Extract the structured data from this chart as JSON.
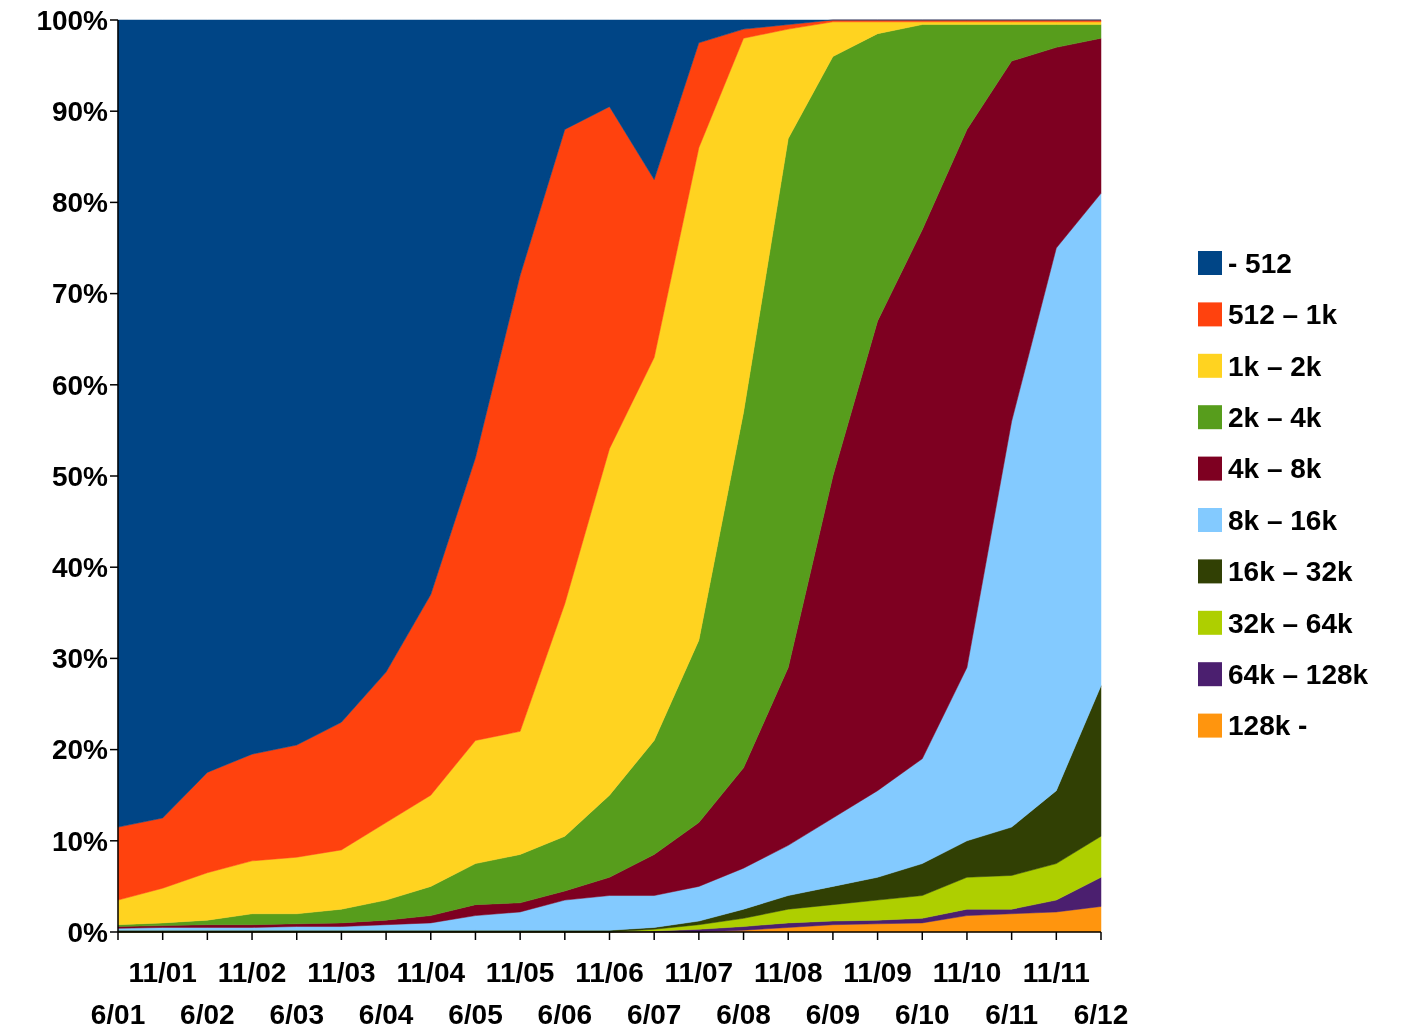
{
  "chart_data": {
    "type": "area",
    "stacked": true,
    "legend": "right",
    "grid": false,
    "categories": [
      "6/01",
      "11/01",
      "6/02",
      "11/02",
      "6/03",
      "11/03",
      "6/04",
      "11/04",
      "6/05",
      "11/05",
      "6/06",
      "11/06",
      "6/07",
      "11/07",
      "6/08",
      "11/08",
      "6/09",
      "11/09",
      "6/10",
      "11/10",
      "6/11",
      "11/11",
      "6/12"
    ],
    "ylim": [
      0,
      100
    ],
    "yticks": [
      {
        "value": 0,
        "label": "0%"
      },
      {
        "value": 10,
        "label": "10%"
      },
      {
        "value": 20,
        "label": "20%"
      },
      {
        "value": 30,
        "label": "30%"
      },
      {
        "value": 40,
        "label": "40%"
      },
      {
        "value": 50,
        "label": "50%"
      },
      {
        "value": 60,
        "label": "60%"
      },
      {
        "value": 70,
        "label": "70%"
      },
      {
        "value": 80,
        "label": "80%"
      },
      {
        "value": 90,
        "label": "90%"
      },
      {
        "value": 100,
        "label": "100%"
      }
    ],
    "series": [
      {
        "name": "128k -",
        "color": "#ff950e",
        "values": [
          0,
          0,
          0,
          0,
          0,
          0,
          0,
          0,
          0,
          0,
          0,
          0,
          0,
          0,
          0.2,
          0.5,
          0.8,
          0.9,
          1,
          1.8,
          2,
          2.2,
          2.8
        ]
      },
      {
        "name": "64k – 128k",
        "color": "#4b1f6f",
        "values": [
          0,
          0,
          0,
          0,
          0,
          0,
          0,
          0,
          0,
          0,
          0,
          0,
          0.1,
          0.3,
          0.4,
          0.5,
          0.4,
          0.4,
          0.5,
          0.7,
          0.5,
          1.3,
          3.2
        ]
      },
      {
        "name": "32k – 64k",
        "color": "#aecf00",
        "values": [
          0,
          0,
          0,
          0,
          0,
          0,
          0,
          0,
          0,
          0,
          0,
          0,
          0.2,
          0.5,
          0.9,
          1.5,
          1.8,
          2.2,
          2.5,
          3.5,
          3.7,
          4,
          4.5
        ]
      },
      {
        "name": "16k – 32k",
        "color": "#314004",
        "values": [
          0.2,
          0.2,
          0.2,
          0.2,
          0.2,
          0.2,
          0.2,
          0.2,
          0.2,
          0.2,
          0.2,
          0.2,
          0.2,
          0.4,
          1,
          1.5,
          2,
          2.5,
          3.5,
          4,
          5.3,
          8,
          16.5
        ]
      },
      {
        "name": "8k – 16k",
        "color": "#83caff",
        "values": [
          0.2,
          0.3,
          0.3,
          0.3,
          0.4,
          0.4,
          0.6,
          0.8,
          1.6,
          2,
          3.3,
          3.8,
          3.5,
          3.8,
          4.5,
          5.5,
          7.5,
          9.5,
          11.5,
          19,
          44.5,
          59.5,
          54
        ]
      },
      {
        "name": "4k – 8k",
        "color": "#7e0021",
        "values": [
          0.2,
          0.2,
          0.3,
          0.3,
          0.3,
          0.4,
          0.5,
          0.8,
          1.2,
          1,
          1,
          2,
          4.5,
          7,
          11,
          19.5,
          37.5,
          51.5,
          58,
          59,
          39.5,
          22,
          17
        ]
      },
      {
        "name": "2k – 4k",
        "color": "#579d1c",
        "values": [
          0.2,
          0.3,
          0.5,
          1.2,
          1.1,
          1.5,
          2.2,
          3.2,
          4.5,
          5.3,
          6,
          9,
          12.5,
          20,
          39,
          58,
          46,
          31.5,
          22.5,
          11.5,
          4,
          2.5,
          1.5
        ]
      },
      {
        "name": "1k – 2k",
        "color": "#ffd320",
        "values": [
          2.7,
          3.8,
          5.2,
          5.8,
          6.2,
          6.5,
          8.5,
          10,
          13.5,
          13.5,
          25.5,
          38,
          42,
          54,
          41,
          12,
          3.8,
          1.3,
          0.3,
          0.3,
          0.3,
          0.3,
          0.3
        ]
      },
      {
        "name": "512 – 1k",
        "color": "#ff420e",
        "values": [
          8,
          7.7,
          11,
          11.7,
          12.3,
          14,
          16.5,
          22,
          31,
          50,
          52,
          37.5,
          19.5,
          11.5,
          1,
          0.5,
          0.2,
          0.2,
          0.2,
          0.2,
          0.2,
          0.2,
          0.2
        ]
      },
      {
        "name": "- 512",
        "color": "#004586",
        "values": [
          88.5,
          87.5,
          82.5,
          80.5,
          79.5,
          77,
          71.5,
          63,
          48,
          28,
          12,
          9.5,
          17.5,
          2.5,
          1,
          0.5,
          0,
          0,
          0,
          0,
          0,
          0,
          0
        ]
      }
    ]
  }
}
